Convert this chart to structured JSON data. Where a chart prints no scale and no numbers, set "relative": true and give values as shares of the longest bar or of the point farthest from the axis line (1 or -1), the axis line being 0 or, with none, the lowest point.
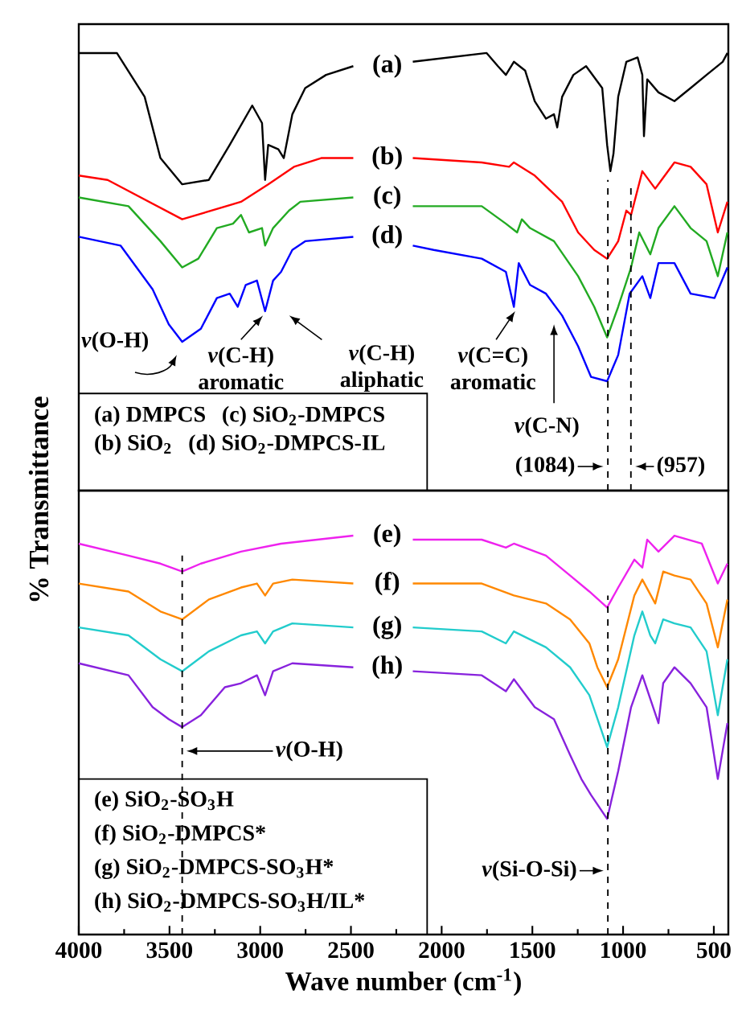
{
  "chart_data": [
    {
      "type": "line",
      "relative": true,
      "xlim": [
        4000,
        420
      ],
      "tick_labels": false,
      "ylabel": "% Transmittance",
      "series": [
        {
          "name": "(a)",
          "color": "#000000",
          "x": [
            4000,
            3790,
            3637,
            3550,
            3430,
            3283,
            3168,
            3044,
            2990,
            2973,
            2956,
            2900,
            2870,
            2823,
            2752,
            2637,
            2487,
            2300,
            2159,
            1752,
            1690,
            1646,
            1602,
            1540,
            1487,
            1425,
            1381,
            1363,
            1336,
            1274,
            1204,
            1115,
            1088,
            1070,
            1053,
            1027,
            982,
            920,
            894,
            885,
            867,
            805,
            717,
            628,
            540,
            451,
            425
          ],
          "values": [
            1.0,
            1.0,
            0.9,
            0.76,
            0.7,
            0.71,
            0.79,
            0.88,
            0.84,
            0.71,
            0.79,
            0.78,
            0.76,
            0.86,
            0.92,
            0.95,
            0.97,
            null,
            0.98,
            1.0,
            0.97,
            0.95,
            0.98,
            0.96,
            0.89,
            0.85,
            0.86,
            0.83,
            0.9,
            0.95,
            0.97,
            0.92,
            0.79,
            0.73,
            0.77,
            0.9,
            0.98,
            0.99,
            0.95,
            0.81,
            0.94,
            0.91,
            0.89,
            0.92,
            0.95,
            0.98,
            1.0
          ]
        },
        {
          "name": "(b)",
          "color": "#ff0000",
          "x": [
            4000,
            3841,
            3430,
            3106,
            2956,
            2814,
            2664,
            2487,
            2300,
            2159,
            1779,
            1628,
            1602,
            1487,
            1336,
            1248,
            1159,
            1088,
            1027,
            982,
            956,
            894,
            823,
            788,
            717,
            628,
            540,
            478,
            425
          ],
          "values": [
            0.72,
            0.71,
            0.62,
            0.66,
            0.7,
            0.74,
            0.76,
            0.76,
            null,
            0.76,
            0.75,
            0.74,
            0.75,
            0.72,
            0.66,
            0.59,
            0.55,
            0.53,
            0.57,
            0.64,
            0.63,
            0.73,
            0.69,
            0.71,
            0.75,
            0.74,
            0.7,
            0.59,
            0.66
          ]
        },
        {
          "name": "(c)",
          "color": "#22aa22",
          "x": [
            4000,
            3726,
            3550,
            3430,
            3341,
            3239,
            3150,
            3106,
            3062,
            2990,
            2973,
            2929,
            2885,
            2841,
            2779,
            2487,
            2300,
            2159,
            1779,
            1646,
            1584,
            1558,
            1513,
            1381,
            1248,
            1159,
            1088,
            1027,
            956,
            911,
            850,
            805,
            717,
            628,
            540,
            478,
            425
          ],
          "values": [
            0.67,
            0.65,
            0.57,
            0.51,
            0.53,
            0.6,
            0.61,
            0.63,
            0.59,
            0.6,
            0.56,
            0.6,
            0.62,
            0.64,
            0.66,
            0.67,
            null,
            0.65,
            0.65,
            0.61,
            0.59,
            0.62,
            0.6,
            0.57,
            0.49,
            0.42,
            0.35,
            0.42,
            0.51,
            0.59,
            0.54,
            0.6,
            0.65,
            0.6,
            0.57,
            0.49,
            0.59
          ]
        },
        {
          "name": "(d)",
          "color": "#0000ff",
          "x": [
            4000,
            3770,
            3593,
            3504,
            3430,
            3327,
            3239,
            3168,
            3124,
            3080,
            3018,
            2973,
            2929,
            2885,
            2823,
            2752,
            2487,
            2300,
            2159,
            2044,
            1779,
            1646,
            1602,
            1575,
            1513,
            1425,
            1336,
            1248,
            1177,
            1088,
            1027,
            964,
            894,
            850,
            805,
            717,
            628,
            496,
            425
          ],
          "values": [
            0.58,
            0.56,
            0.46,
            0.38,
            0.34,
            0.37,
            0.44,
            0.45,
            0.42,
            0.47,
            0.48,
            0.41,
            0.48,
            0.5,
            0.55,
            0.57,
            0.58,
            null,
            0.56,
            0.55,
            0.53,
            0.5,
            0.42,
            0.52,
            0.47,
            0.45,
            0.4,
            0.33,
            0.26,
            0.25,
            0.31,
            0.45,
            0.49,
            0.44,
            0.52,
            0.52,
            0.45,
            0.44,
            0.51
          ]
        }
      ],
      "ref_lines": [
        {
          "axis": "x",
          "value": 1084,
          "label": "(1084)",
          "line_style": "dashed"
        },
        {
          "axis": "x",
          "value": 957,
          "label": "(957)",
          "line_style": "dashed"
        }
      ],
      "annotations": [
        "*ν*(O-H)",
        "*ν*(C-H) aromatic",
        "*ν*(C-H) aliphatic",
        "*ν*(C=C) aromatic",
        "*ν*(C-N)",
        "(a) DMPCS",
        "(c) SiO$_{2}$-DMPCS",
        "(b) SiO$_{2}$",
        "(d) SiO$_{2}$-DMPCS-IL"
      ]
    },
    {
      "type": "line",
      "relative": true,
      "xlim": [
        4000,
        420
      ],
      "xticks": [
        4000,
        3500,
        3000,
        2500,
        2000,
        1500,
        1000,
        500
      ],
      "tick_labels": "x",
      "xlabel": "Wave number (cm$^{-1}$)",
      "series": [
        {
          "name": "(e)",
          "color": "#ee22ee",
          "x": [
            4000,
            3726,
            3550,
            3430,
            3327,
            3106,
            2885,
            2487,
            2300,
            2159,
            1779,
            1646,
            1602,
            1425,
            1292,
            1186,
            1088,
            1027,
            938,
            894,
            867,
            805,
            717,
            566,
            478,
            425
          ],
          "values": [
            0.98,
            0.95,
            0.93,
            0.91,
            0.93,
            0.96,
            0.98,
            1.0,
            null,
            0.99,
            0.99,
            0.97,
            0.98,
            0.95,
            0.9,
            0.86,
            0.82,
            0.87,
            0.94,
            0.92,
            0.99,
            0.96,
            1.0,
            0.98,
            0.88,
            0.93
          ]
        },
        {
          "name": "(f)",
          "color": "#ff8800",
          "x": [
            4000,
            3726,
            3550,
            3430,
            3283,
            3106,
            3018,
            2973,
            2929,
            2823,
            2487,
            2300,
            2159,
            1779,
            1602,
            1425,
            1292,
            1186,
            1142,
            1088,
            1027,
            938,
            894,
            823,
            779,
            717,
            628,
            540,
            478,
            425
          ],
          "values": [
            0.88,
            0.86,
            0.81,
            0.79,
            0.84,
            0.87,
            0.88,
            0.85,
            0.88,
            0.89,
            0.88,
            null,
            0.88,
            0.88,
            0.85,
            0.83,
            0.79,
            0.73,
            0.67,
            0.62,
            0.69,
            0.85,
            0.89,
            0.83,
            0.91,
            0.9,
            0.89,
            0.83,
            0.72,
            0.84
          ]
        },
        {
          "name": "(g)",
          "color": "#22cccc",
          "x": [
            4000,
            3726,
            3550,
            3430,
            3283,
            3106,
            3018,
            2973,
            2929,
            2823,
            2487,
            2300,
            2159,
            1779,
            1646,
            1602,
            1425,
            1292,
            1186,
            1088,
            1027,
            938,
            894,
            850,
            823,
            779,
            717,
            628,
            540,
            478,
            425
          ],
          "values": [
            0.77,
            0.75,
            0.69,
            0.66,
            0.71,
            0.75,
            0.76,
            0.73,
            0.76,
            0.78,
            0.77,
            null,
            0.77,
            0.76,
            0.73,
            0.76,
            0.72,
            0.67,
            0.6,
            0.47,
            0.57,
            0.75,
            0.81,
            0.75,
            0.73,
            0.79,
            0.78,
            0.77,
            0.71,
            0.55,
            0.69
          ]
        },
        {
          "name": "(h)",
          "color": "#8822dd",
          "x": [
            4000,
            3726,
            3593,
            3504,
            3430,
            3327,
            3195,
            3106,
            3018,
            2973,
            2929,
            2823,
            2487,
            2300,
            2159,
            1779,
            1646,
            1602,
            1487,
            1381,
            1292,
            1230,
            1177,
            1088,
            1027,
            956,
            894,
            805,
            779,
            717,
            628,
            540,
            478,
            425
          ],
          "values": [
            0.68,
            0.65,
            0.57,
            0.54,
            0.52,
            0.55,
            0.62,
            0.63,
            0.65,
            0.6,
            0.66,
            0.68,
            0.67,
            null,
            0.66,
            0.65,
            0.61,
            0.64,
            0.57,
            0.54,
            0.45,
            0.39,
            0.35,
            0.29,
            0.41,
            0.57,
            0.65,
            0.53,
            0.63,
            0.67,
            0.63,
            0.57,
            0.39,
            0.53
          ]
        }
      ],
      "ref_lines": [
        {
          "axis": "x",
          "value": 3430,
          "label": "*ν*(O-H)",
          "line_style": "dashed"
        },
        {
          "axis": "x",
          "value": 1084,
          "label": "*ν*(Si-O-Si)",
          "line_style": "dashed"
        }
      ],
      "annotations": [
        "(e) SiO$_{2}$-SO$_{3}$H",
        "(f) SiO$_{2}$-DMPCS*",
        "(g) SiO$_{2}$-DMPCS-SO$_{3}$H*",
        "(h) SiO$_{2}$-DMPCS-SO$_{3}$H/IL*"
      ]
    }
  ]
}
